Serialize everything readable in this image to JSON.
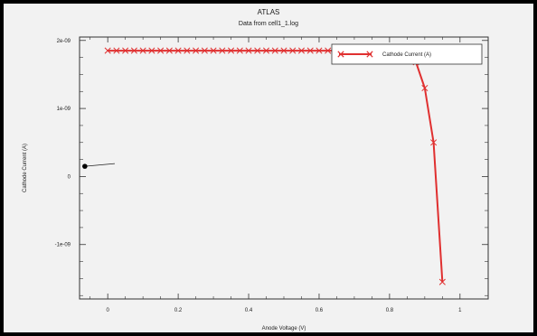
{
  "header": {
    "title": "ATLAS",
    "subtitle": "Data from cell1_1.log"
  },
  "colors": {
    "series": "#e03030",
    "axis": "#333333",
    "background": "#f2f2f2",
    "border": "#000000"
  },
  "chart_data": {
    "type": "line",
    "title": "ATLAS",
    "subtitle": "Data from cell1_1.log",
    "xlabel": "Anode Voltage (V)",
    "ylabel": "Cathode Current (A)",
    "xlim": [
      -0.08,
      1.08
    ],
    "ylim": [
      -1.8e-09,
      2.05e-09
    ],
    "x_ticks": [
      0,
      0.2,
      0.4,
      0.6,
      0.8,
      1
    ],
    "x_tick_labels": [
      "0",
      "0.2",
      "0.4",
      "0.6",
      "0.8",
      "1"
    ],
    "y_ticks": [
      -1e-09,
      0,
      1e-09,
      2e-09
    ],
    "y_tick_labels": [
      "-1e-09",
      "0",
      "1e-09",
      "2e-09"
    ],
    "grid": false,
    "legend": {
      "position": "top-right",
      "entries": [
        "Cathode Current (A)"
      ]
    },
    "series": [
      {
        "name": "Cathode Current (A)",
        "marker": "x",
        "x": [
          0,
          0.025,
          0.05,
          0.075,
          0.1,
          0.125,
          0.15,
          0.175,
          0.2,
          0.225,
          0.25,
          0.275,
          0.3,
          0.325,
          0.35,
          0.375,
          0.4,
          0.425,
          0.45,
          0.475,
          0.5,
          0.525,
          0.55,
          0.575,
          0.6,
          0.625,
          0.65,
          0.675,
          0.7,
          0.725,
          0.75,
          0.775,
          0.8,
          0.825,
          0.85,
          0.875,
          0.9,
          0.925,
          0.95
        ],
        "y": [
          1.85e-09,
          1.85e-09,
          1.85e-09,
          1.85e-09,
          1.85e-09,
          1.85e-09,
          1.85e-09,
          1.85e-09,
          1.85e-09,
          1.85e-09,
          1.85e-09,
          1.85e-09,
          1.85e-09,
          1.85e-09,
          1.85e-09,
          1.85e-09,
          1.85e-09,
          1.85e-09,
          1.85e-09,
          1.85e-09,
          1.85e-09,
          1.85e-09,
          1.85e-09,
          1.85e-09,
          1.85e-09,
          1.85e-09,
          1.85e-09,
          1.85e-09,
          1.85e-09,
          1.85e-09,
          1.848e-09,
          1.845e-09,
          1.84e-09,
          1.83e-09,
          1.8e-09,
          1.68e-09,
          1.3e-09,
          5e-10,
          -1.55e-09
        ]
      }
    ],
    "annotations": [
      {
        "type": "point-with-line",
        "x": -0.065,
        "y": 1.5e-10,
        "x_end": 0.02,
        "y_end": 1.9e-10
      }
    ]
  }
}
